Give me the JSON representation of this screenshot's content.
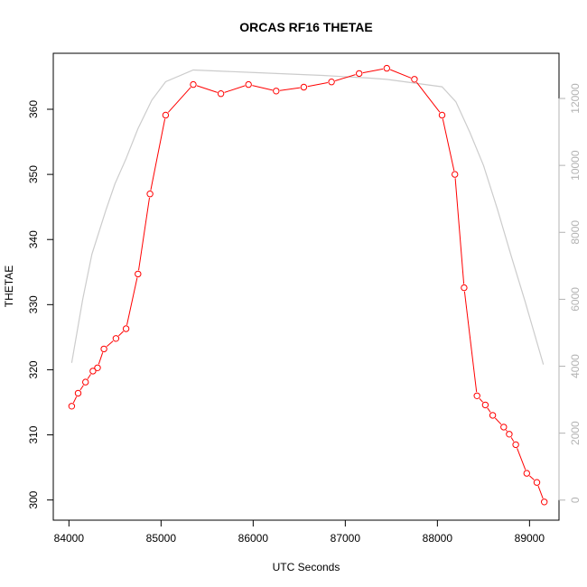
{
  "chart_data": {
    "type": "line",
    "title": "ORCAS RF16 THETAE",
    "xlabel": "UTC Seconds",
    "ylabel": "THETAE",
    "y2label": "",
    "xlim": [
      83830,
      89320
    ],
    "ylim": [
      296.9,
      368.6
    ],
    "y2lim": [
      -600,
      13350
    ],
    "x_ticks": [
      84000,
      85000,
      86000,
      87000,
      88000,
      89000
    ],
    "y_ticks": [
      300,
      310,
      320,
      330,
      340,
      350,
      360
    ],
    "y2_ticks": [
      0,
      2000,
      4000,
      6000,
      8000,
      10000,
      12000
    ],
    "grid": false,
    "colors": {
      "thetae": "#ff0000",
      "altitude": "#cccccc",
      "secondary_axis": "#b3b3b3"
    },
    "series": [
      {
        "axis": "left",
        "style": "line-with-circles",
        "x": [
          84030,
          84100,
          84180,
          84260,
          84310,
          84380,
          84510,
          84620,
          84750,
          84880,
          85050,
          85350,
          85650,
          85950,
          86250,
          86550,
          86850,
          87150,
          87450,
          87750,
          88050,
          88190,
          88290,
          88430,
          88520,
          88600,
          88720,
          88780,
          88850,
          88970,
          89080,
          89160
        ],
        "y": [
          314.4,
          316.4,
          318.1,
          319.8,
          320.3,
          323.2,
          324.8,
          326.3,
          334.7,
          347.0,
          359.1,
          363.8,
          362.4,
          363.8,
          362.8,
          363.4,
          364.2,
          365.5,
          366.3,
          364.6,
          359.1,
          350.0,
          332.6,
          316.0,
          314.6,
          313.0,
          311.2,
          310.1,
          308.5,
          304.1,
          302.7,
          299.7
        ]
      },
      {
        "axis": "right",
        "style": "line",
        "x": [
          84030,
          84150,
          84250,
          84400,
          84500,
          84620,
          84750,
          84900,
          85050,
          85350,
          86050,
          86750,
          87250,
          87450,
          88050,
          88200,
          88350,
          88500,
          88650,
          88800,
          88950,
          89050,
          89150
        ],
        "y": [
          4100,
          6000,
          7350,
          8650,
          9450,
          10200,
          11100,
          11950,
          12500,
          12850,
          12770,
          12690,
          12610,
          12570,
          12350,
          11900,
          11000,
          10000,
          8700,
          7300,
          5950,
          5000,
          4050
        ]
      }
    ]
  }
}
